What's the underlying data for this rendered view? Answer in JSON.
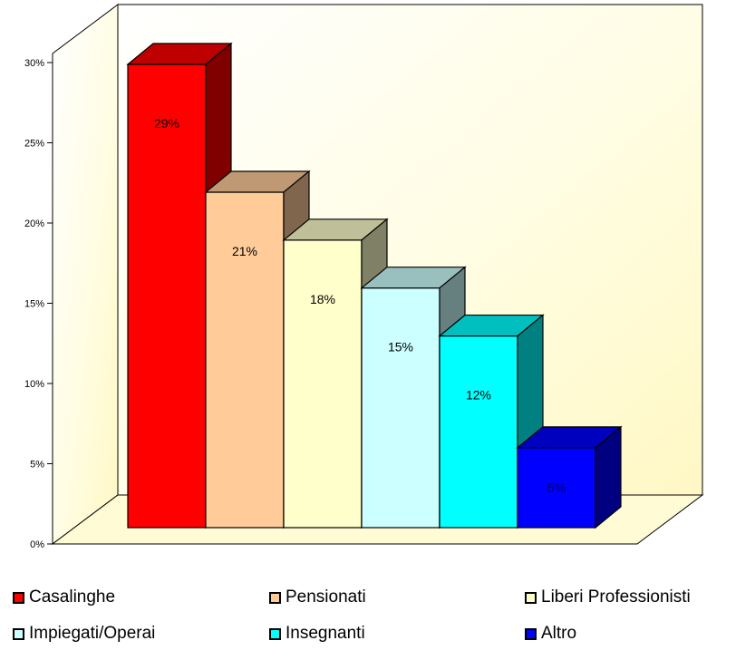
{
  "chart_data": {
    "type": "bar",
    "categories": [
      "Casalinghe",
      "Pensionati",
      "Liberi Professionisti",
      "Impiegati/Operai",
      "Insegnanti",
      "Altro"
    ],
    "values": [
      29,
      21,
      18,
      15,
      12,
      5
    ],
    "data_labels": [
      "29%",
      "21%",
      "18%",
      "15%",
      "12%",
      "5%"
    ],
    "colors": [
      "#ff0000",
      "#ffcc99",
      "#ffffcc",
      "#ccffff",
      "#00ffff",
      "#0000ff"
    ],
    "yticks": [
      "0%",
      "5%",
      "10%",
      "15%",
      "20%",
      "25%",
      "30%"
    ],
    "ylim": [
      0,
      30
    ],
    "grid": false,
    "legend_position": "bottom",
    "style": "3d"
  }
}
